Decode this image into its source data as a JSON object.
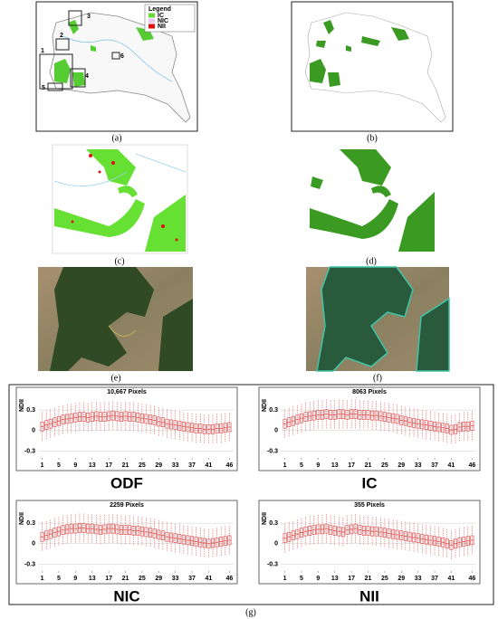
{
  "panel_labels": [
    "(a)",
    "(b)",
    "(c)",
    "(d)",
    "(e)",
    "(f)",
    "(g)"
  ],
  "map_a": {
    "legend_title": "Legend",
    "legend_items": [
      "IC",
      "NIC",
      "NII"
    ],
    "legend_colors": [
      "#66dd33",
      "#e8c8f0",
      "#e01010"
    ],
    "box_labels": [
      "1",
      "2",
      "3",
      "4",
      "5",
      "6"
    ]
  },
  "chart_data": [
    {
      "type": "box",
      "title": "10,667 Pixels",
      "ylabel": "NDII",
      "label": "ODF",
      "color": "#d94040",
      "x": [
        1,
        2,
        3,
        4,
        5,
        6,
        7,
        8,
        9,
        10,
        11,
        12,
        13,
        14,
        15,
        16,
        17,
        18,
        19,
        20,
        21,
        22,
        23,
        24,
        25,
        26,
        27,
        28,
        29,
        30,
        31,
        32,
        33,
        34,
        35,
        36,
        37,
        38,
        39,
        40,
        41,
        42,
        43,
        44,
        45,
        46
      ],
      "values": [
        0.06,
        0.08,
        0.1,
        0.12,
        0.14,
        0.16,
        0.17,
        0.18,
        0.19,
        0.2,
        0.2,
        0.19,
        0.2,
        0.21,
        0.2,
        0.2,
        0.21,
        0.22,
        0.21,
        0.2,
        0.21,
        0.2,
        0.2,
        0.19,
        0.18,
        0.17,
        0.16,
        0.15,
        0.13,
        0.12,
        0.1,
        0.09,
        0.08,
        0.07,
        0.06,
        0.05,
        0.04,
        0.03,
        0.03,
        0.02,
        0.02,
        0.02,
        0.03,
        0.03,
        0.04,
        0.05
      ],
      "xlim": [
        0,
        47
      ],
      "xticks": [
        1,
        5,
        9,
        13,
        17,
        21,
        25,
        29,
        33,
        37,
        41,
        46
      ],
      "ylim": [
        -0.4,
        0.5
      ],
      "yticks": [
        0.3,
        0,
        -0.3
      ],
      "grid": true
    },
    {
      "type": "box",
      "title": "8063 Pixels",
      "ylabel": "NDII",
      "label": "IC",
      "color": "#d94040",
      "x": [
        1,
        2,
        3,
        4,
        5,
        6,
        7,
        8,
        9,
        10,
        11,
        12,
        13,
        14,
        15,
        16,
        17,
        18,
        19,
        20,
        21,
        22,
        23,
        24,
        25,
        26,
        27,
        28,
        29,
        30,
        31,
        32,
        33,
        34,
        35,
        36,
        37,
        38,
        39,
        40,
        41,
        42,
        43,
        44,
        45,
        46
      ],
      "values": [
        0.1,
        0.12,
        0.14,
        0.16,
        0.18,
        0.2,
        0.21,
        0.22,
        0.23,
        0.23,
        0.24,
        0.23,
        0.23,
        0.24,
        0.24,
        0.23,
        0.24,
        0.24,
        0.23,
        0.23,
        0.23,
        0.22,
        0.22,
        0.21,
        0.2,
        0.19,
        0.18,
        0.17,
        0.15,
        0.14,
        0.12,
        0.11,
        0.1,
        0.09,
        0.08,
        0.07,
        0.06,
        0.05,
        0.04,
        0.03,
        0.01,
        0.02,
        0.05,
        0.06,
        0.06,
        0.07
      ],
      "xlim": [
        0,
        47
      ],
      "xticks": [
        1,
        5,
        9,
        13,
        17,
        21,
        25,
        29,
        33,
        37,
        41,
        46
      ],
      "ylim": [
        -0.4,
        0.5
      ],
      "yticks": [
        0.3,
        0,
        -0.3
      ],
      "grid": true
    },
    {
      "type": "box",
      "title": "2259 Pixels",
      "ylabel": "NDII",
      "label": "NIC",
      "color": "#d94040",
      "x": [
        1,
        2,
        3,
        4,
        5,
        6,
        7,
        8,
        9,
        10,
        11,
        12,
        13,
        14,
        15,
        16,
        17,
        18,
        19,
        20,
        21,
        22,
        23,
        24,
        25,
        26,
        27,
        28,
        29,
        30,
        31,
        32,
        33,
        34,
        35,
        36,
        37,
        38,
        39,
        40,
        41,
        42,
        43,
        44,
        45,
        46
      ],
      "values": [
        0.1,
        0.12,
        0.14,
        0.16,
        0.18,
        0.2,
        0.21,
        0.22,
        0.22,
        0.23,
        0.23,
        0.22,
        0.22,
        0.21,
        0.2,
        0.21,
        0.22,
        0.22,
        0.21,
        0.2,
        0.2,
        0.2,
        0.19,
        0.19,
        0.18,
        0.17,
        0.16,
        0.15,
        0.13,
        0.12,
        0.1,
        0.09,
        0.08,
        0.07,
        0.06,
        0.05,
        0.04,
        0.03,
        0.02,
        0.01,
        0.0,
        0.01,
        0.02,
        0.03,
        0.04,
        0.05
      ],
      "xlim": [
        0,
        47
      ],
      "xticks": [
        1,
        5,
        9,
        13,
        17,
        21,
        25,
        29,
        33,
        37,
        41,
        46
      ],
      "ylim": [
        -0.4,
        0.5
      ],
      "yticks": [
        0.3,
        0,
        -0.3
      ],
      "grid": true
    },
    {
      "type": "box",
      "title": "355 Pixels",
      "ylabel": "NDII",
      "label": "NII",
      "color": "#d94040",
      "x": [
        1,
        2,
        3,
        4,
        5,
        6,
        7,
        8,
        9,
        10,
        11,
        12,
        13,
        14,
        15,
        16,
        17,
        18,
        19,
        20,
        21,
        22,
        23,
        24,
        25,
        26,
        27,
        28,
        29,
        30,
        31,
        32,
        33,
        34,
        35,
        36,
        37,
        38,
        39,
        40,
        41,
        42,
        43,
        44,
        45,
        46
      ],
      "values": [
        0.08,
        0.1,
        0.12,
        0.14,
        0.16,
        0.18,
        0.19,
        0.2,
        0.21,
        0.21,
        0.22,
        0.2,
        0.19,
        0.18,
        0.17,
        0.2,
        0.21,
        0.22,
        0.2,
        0.19,
        0.19,
        0.18,
        0.18,
        0.17,
        0.16,
        0.15,
        0.14,
        0.13,
        0.12,
        0.11,
        0.1,
        0.09,
        0.08,
        0.07,
        0.06,
        0.05,
        0.04,
        0.03,
        0.02,
        0.0,
        -0.02,
        0.0,
        0.02,
        0.03,
        0.04,
        0.05
      ],
      "xlim": [
        0,
        47
      ],
      "xticks": [
        1,
        5,
        9,
        13,
        17,
        21,
        25,
        29,
        33,
        37,
        41,
        46
      ],
      "ylim": [
        -0.4,
        0.5
      ],
      "yticks": [
        0.3,
        0,
        -0.3
      ],
      "grid": true
    }
  ]
}
